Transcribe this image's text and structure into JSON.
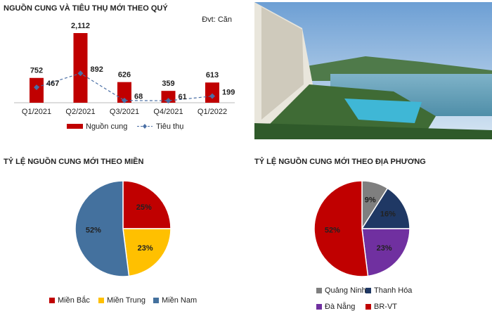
{
  "chart_data": [
    {
      "type": "combo",
      "title": "NGUỒN CUNG VÀ TIÊU THỤ MỚI THEO QUÝ",
      "annotation": "Đvt: Căn",
      "categories": [
        "Q1/2021",
        "Q2/2021",
        "Q3/2021",
        "Q4/2021",
        "Q1/2022"
      ],
      "series": [
        {
          "name": "Nguồn cung",
          "type": "bar",
          "color": "#c00000",
          "values": [
            752,
            2112,
            626,
            359,
            613
          ],
          "value_labels": [
            "752",
            "2,112",
            "626",
            "359",
            "613"
          ]
        },
        {
          "name": "Tiêu thụ",
          "type": "line",
          "color": "#4a6fa5",
          "values": [
            467,
            892,
            68,
            61,
            199
          ]
        }
      ]
    },
    {
      "type": "pie",
      "title": "TỶ LỆ NGUỒN CUNG MỚI THEO MIỀN",
      "categories": [
        "Miền Bắc",
        "Miền Trung",
        "Miền Nam"
      ],
      "values": [
        25,
        23,
        52
      ],
      "value_labels": [
        "25%",
        "23%",
        "52%"
      ],
      "colors": [
        "#c00000",
        "#ffc000",
        "#44719e"
      ]
    },
    {
      "type": "pie",
      "title": "TỶ LỆ NGUỒN CUNG MỚI THEO ĐỊA PHƯƠNG",
      "categories": [
        "Quảng Ninh",
        "Thanh Hóa",
        "Đà Nẵng",
        "BR-VT"
      ],
      "values": [
        9,
        16,
        23,
        52
      ],
      "value_labels": [
        "9%",
        "16%",
        "23%",
        "52%"
      ],
      "colors": [
        "#7f7f7f",
        "#1f3864",
        "#7030a0",
        "#c00000"
      ]
    }
  ]
}
